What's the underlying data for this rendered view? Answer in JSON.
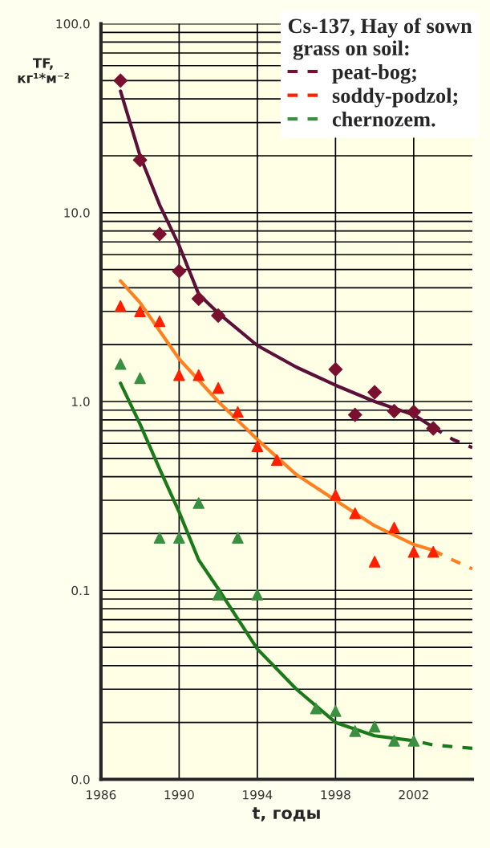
{
  "chart_data": {
    "type": "scatter",
    "legend_title": "Cs-137, Hay of sown\n grass on soil:",
    "ylabel": "TF,\nкг¹*м⁻²",
    "xlabel": "t, годы",
    "log": "y",
    "grid": true,
    "legend": "top right",
    "xlim": [
      1986,
      2005
    ],
    "xticks": [
      1986,
      1990,
      1994,
      1998,
      2002
    ],
    "ylim": [
      0.01,
      100
    ],
    "yticks": [
      {
        "value": 0.01,
        "label": "0.0"
      },
      {
        "value": 0.1,
        "label": "0.1"
      },
      {
        "value": 1,
        "label": "1.0"
      },
      {
        "value": 10,
        "label": "10.0"
      },
      {
        "value": 100,
        "label": "100.0"
      }
    ],
    "series": [
      {
        "name": "peat-bog;",
        "marker": "diamond",
        "color": "#7a1030",
        "x": [
          1987,
          1988,
          1989,
          1990,
          1991,
          1992,
          1998,
          1999,
          2000,
          2001,
          2002,
          2003
        ],
        "values": [
          50,
          19,
          7.7,
          4.9,
          3.5,
          2.85,
          1.48,
          0.85,
          1.12,
          0.89,
          0.88,
          0.72
        ]
      },
      {
        "name": "soddy-podzol;",
        "marker": "triangle",
        "color": "#ff2000",
        "x": [
          1987,
          1988,
          1989,
          1990,
          1991,
          1992,
          1993,
          1994,
          1995,
          1998,
          1999,
          2000,
          2001,
          2002,
          2003
        ],
        "values": [
          3.2,
          3.0,
          2.66,
          1.38,
          1.38,
          1.18,
          0.88,
          0.58,
          0.49,
          0.32,
          0.256,
          0.142,
          0.215,
          0.16,
          0.16
        ]
      },
      {
        "name": "chernozem.",
        "marker": "triangle",
        "color": "#3a9040",
        "x": [
          1987,
          1988,
          1989,
          1990,
          1991,
          1992,
          1993,
          1994,
          1997,
          1998,
          1999,
          2000,
          2001,
          2002
        ],
        "values": [
          1.58,
          1.33,
          0.19,
          0.19,
          0.29,
          0.095,
          0.19,
          0.095,
          0.0237,
          0.023,
          0.018,
          0.019,
          0.016,
          0.016
        ]
      },
      {
        "type": "line",
        "marker": "none",
        "line_style": "solid",
        "color": "#5a1038",
        "x": [
          1987,
          1988,
          1989,
          1990,
          1991,
          1992,
          1994,
          1996,
          1998,
          2000,
          2002,
          2003
        ],
        "values": [
          44,
          20,
          11,
          6.7,
          3.7,
          2.94,
          1.98,
          1.52,
          1.22,
          1.0,
          0.85,
          0.73
        ]
      },
      {
        "type": "line",
        "marker": "none",
        "line_style": "dashed",
        "color": "#5a1038",
        "x": [
          2003,
          2004,
          2005
        ],
        "values": [
          0.73,
          0.63,
          0.57
        ]
      },
      {
        "type": "line",
        "marker": "none",
        "line_style": "solid",
        "color": "#ff8020",
        "x": [
          1987,
          1988,
          1990,
          1992,
          1994,
          1996,
          1998,
          2000,
          2002,
          2003
        ],
        "values": [
          4.35,
          3.34,
          1.68,
          1.0,
          0.63,
          0.41,
          0.3,
          0.22,
          0.175,
          0.163
        ]
      },
      {
        "type": "line",
        "marker": "none",
        "line_style": "dashed",
        "color": "#ff8020",
        "x": [
          2003,
          2004,
          2005
        ],
        "values": [
          0.163,
          0.145,
          0.13
        ]
      },
      {
        "type": "line",
        "marker": "none",
        "line_style": "solid",
        "color": "#1a7a1a",
        "x": [
          1987,
          1988,
          1989,
          1990,
          1991,
          1992,
          1994,
          1996,
          1998,
          2000,
          2002
        ],
        "values": [
          1.25,
          0.76,
          0.44,
          0.26,
          0.145,
          0.102,
          0.049,
          0.03,
          0.02,
          0.017,
          0.016
        ]
      },
      {
        "type": "line",
        "marker": "none",
        "line_style": "dashed",
        "color": "#1a7a1a",
        "x": [
          2005,
          2003,
          2002
        ],
        "values": [
          0.0146,
          0.0152,
          0.016
        ]
      }
    ]
  }
}
